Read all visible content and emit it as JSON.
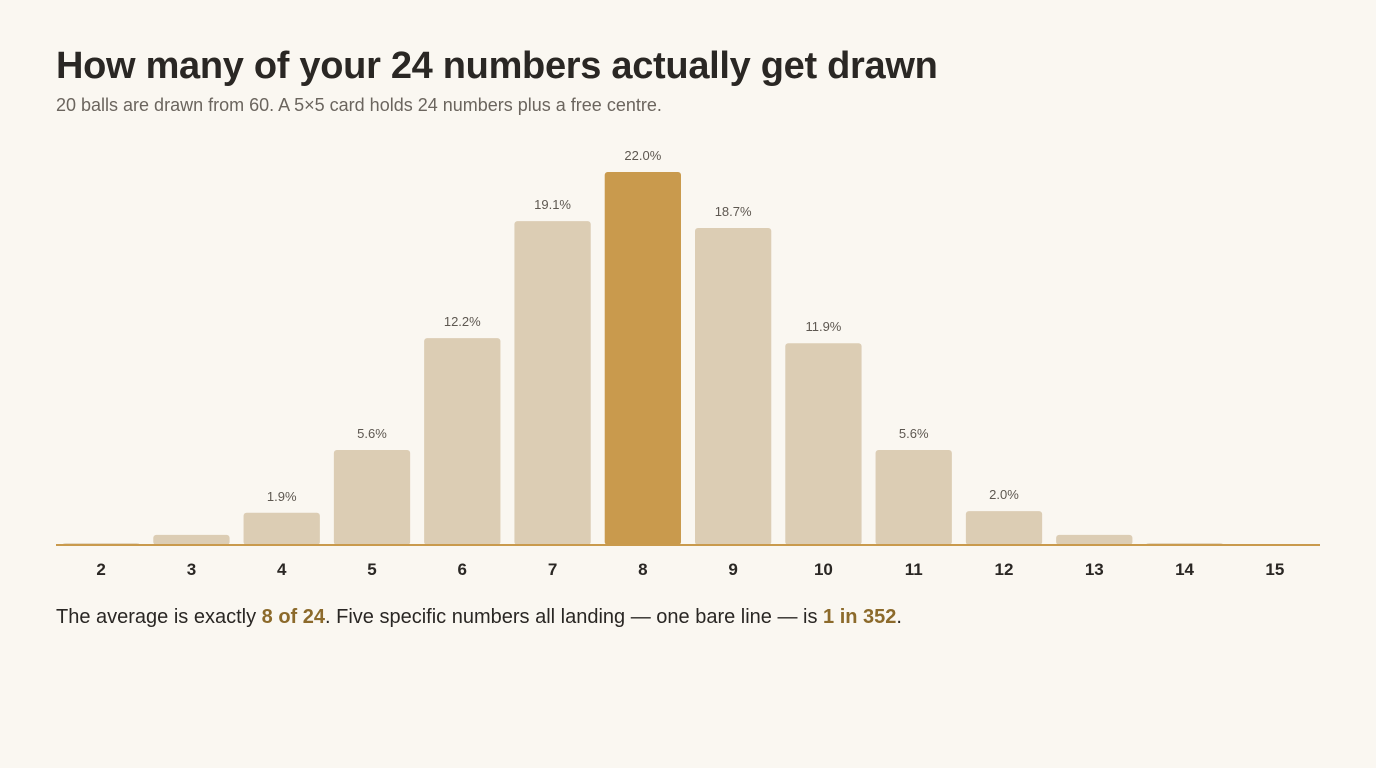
{
  "chart_data": {
    "type": "bar",
    "title": "How many of your 24 numbers actually get drawn",
    "subtitle": "20 balls are drawn from 60. A 5×5 card holds 24 numbers plus a free centre.",
    "categories": [
      "2",
      "3",
      "4",
      "5",
      "6",
      "7",
      "8",
      "9",
      "10",
      "11",
      "12",
      "13",
      "14",
      "15"
    ],
    "values": [
      0.1,
      0.6,
      1.9,
      5.6,
      12.2,
      19.1,
      22.0,
      18.7,
      11.9,
      5.6,
      2.0,
      0.6,
      0.1,
      0.0
    ],
    "value_labels": [
      "",
      "",
      "1.9%",
      "5.6%",
      "12.2%",
      "19.1%",
      "22.0%",
      "18.7%",
      "11.9%",
      "5.6%",
      "2.0%",
      "",
      "",
      ""
    ],
    "highlight_category": "8",
    "unit": "%",
    "ylim": [
      0,
      22.0
    ],
    "grid": false,
    "xlabel": "",
    "ylabel": "",
    "colors": {
      "bar": "#DCCDB4",
      "highlight": "#C99A4D",
      "baseline": "#C99A4D"
    }
  },
  "footnote": {
    "part1": "The average is exactly ",
    "highlight1": "8 of 24",
    "part2": ". Five specific numbers all landing — one bare line — is ",
    "highlight2": "1 in 352",
    "part3": "."
  }
}
